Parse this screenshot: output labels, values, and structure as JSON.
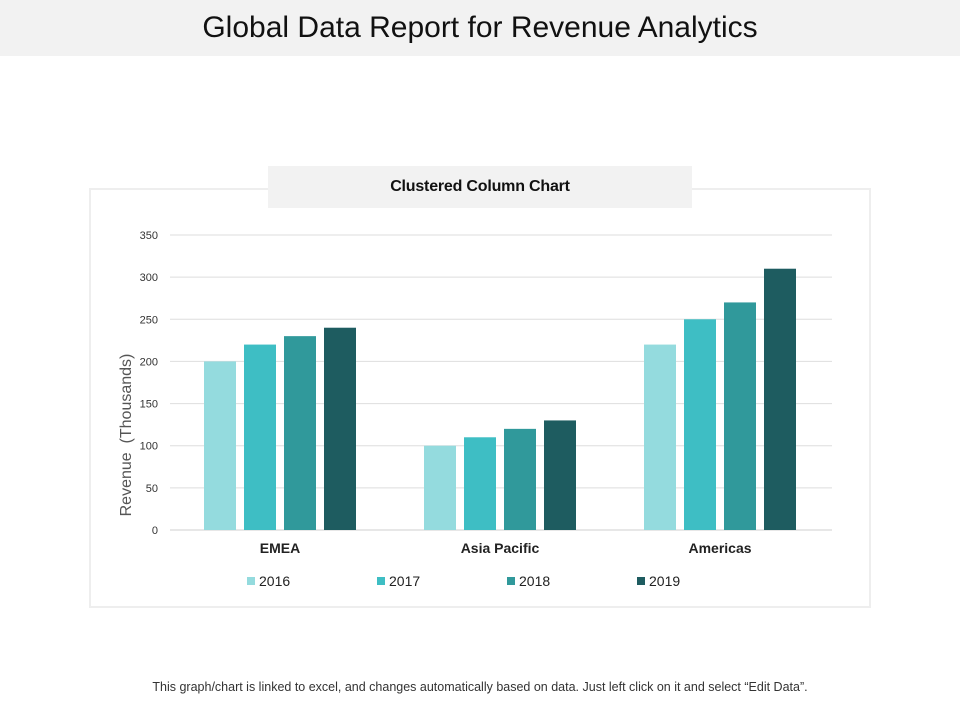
{
  "page_title": "Global Data Report for Revenue Analytics",
  "footer_note": "This graph/chart is linked to excel, and changes automatically based on data. Just left click on it and select “Edit Data”.",
  "chart_data": {
    "type": "bar",
    "title": "Clustered Column Chart",
    "xlabel": "",
    "ylabel": "Revenue  (Thousands)",
    "ylim": [
      0,
      350
    ],
    "yticks": [
      0,
      50,
      100,
      150,
      200,
      250,
      300,
      350
    ],
    "categories": [
      "EMEA",
      "Asia Pacific",
      "Americas"
    ],
    "series": [
      {
        "name": "2016",
        "color": "#94dbde",
        "values": [
          200,
          100,
          220
        ]
      },
      {
        "name": "2017",
        "color": "#3ebec4",
        "values": [
          220,
          110,
          250
        ]
      },
      {
        "name": "2018",
        "color": "#30999b",
        "values": [
          230,
          120,
          270
        ]
      },
      {
        "name": "2019",
        "color": "#1e5c60",
        "values": [
          240,
          130,
          310
        ]
      }
    ],
    "grid": true,
    "legend_position": "bottom"
  }
}
